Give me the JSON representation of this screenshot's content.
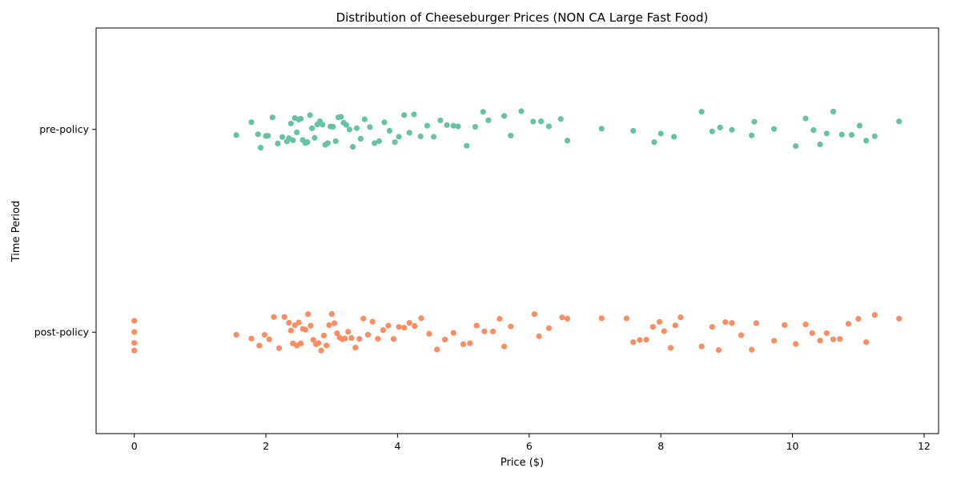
{
  "chart_data": {
    "type": "scatter",
    "title": "Distribution of Cheeseburger Prices (NON CA Large Fast Food)",
    "xlabel": "Price ($)",
    "ylabel": "Time Period",
    "xlim": [
      -0.58,
      12.22
    ],
    "x_ticks": [
      0,
      2,
      4,
      6,
      8,
      10,
      12
    ],
    "categories": [
      "pre-policy",
      "post-policy"
    ],
    "grid": false,
    "legend": "none",
    "series": [
      {
        "category": "pre-policy",
        "color": "#66c2a5",
        "x": [
          1.55,
          1.78,
          1.88,
          1.92,
          2.0,
          2.03,
          2.1,
          2.18,
          2.25,
          2.32,
          2.35,
          2.38,
          2.41,
          2.44,
          2.47,
          2.5,
          2.53,
          2.56,
          2.6,
          2.63,
          2.67,
          2.7,
          2.74,
          2.78,
          2.82,
          2.86,
          2.9,
          2.94,
          2.98,
          3.02,
          3.06,
          3.1,
          3.14,
          3.18,
          3.22,
          3.27,
          3.32,
          3.38,
          3.44,
          3.5,
          3.58,
          3.65,
          3.72,
          3.8,
          3.88,
          3.96,
          4.02,
          4.1,
          4.18,
          4.25,
          4.35,
          4.45,
          4.55,
          4.65,
          4.75,
          4.85,
          4.92,
          5.05,
          5.18,
          5.3,
          5.38,
          5.62,
          5.72,
          5.88,
          6.06,
          6.18,
          6.3,
          6.48,
          6.58,
          7.1,
          7.58,
          7.9,
          8.0,
          8.2,
          8.62,
          8.78,
          8.9,
          9.08,
          9.38,
          9.42,
          9.72,
          10.05,
          10.2,
          10.32,
          10.42,
          10.52,
          10.62,
          10.75,
          10.9,
          11.02,
          11.12,
          11.25,
          11.62
        ]
      },
      {
        "category": "post-policy",
        "color": "#fc8d62",
        "x": [
          0.0,
          0.0,
          0.0,
          0.0,
          1.55,
          1.78,
          1.9,
          1.98,
          2.05,
          2.12,
          2.2,
          2.28,
          2.35,
          2.38,
          2.41,
          2.44,
          2.47,
          2.5,
          2.53,
          2.56,
          2.6,
          2.64,
          2.68,
          2.72,
          2.76,
          2.8,
          2.84,
          2.88,
          2.92,
          2.96,
          3.0,
          3.04,
          3.08,
          3.12,
          3.16,
          3.2,
          3.25,
          3.3,
          3.36,
          3.42,
          3.48,
          3.55,
          3.62,
          3.7,
          3.78,
          3.86,
          3.94,
          4.02,
          4.1,
          4.18,
          4.26,
          4.36,
          4.48,
          4.6,
          4.72,
          4.85,
          5.0,
          5.1,
          5.2,
          5.32,
          5.45,
          5.55,
          5.62,
          5.72,
          6.08,
          6.15,
          6.3,
          6.5,
          6.58,
          7.1,
          7.48,
          7.58,
          7.68,
          7.78,
          7.88,
          7.98,
          8.05,
          8.15,
          8.22,
          8.3,
          8.62,
          8.78,
          8.88,
          8.98,
          9.08,
          9.22,
          9.38,
          9.45,
          9.72,
          9.88,
          10.05,
          10.2,
          10.3,
          10.42,
          10.52,
          10.62,
          10.72,
          10.85,
          11.0,
          11.12,
          11.25,
          11.62
        ]
      }
    ]
  }
}
